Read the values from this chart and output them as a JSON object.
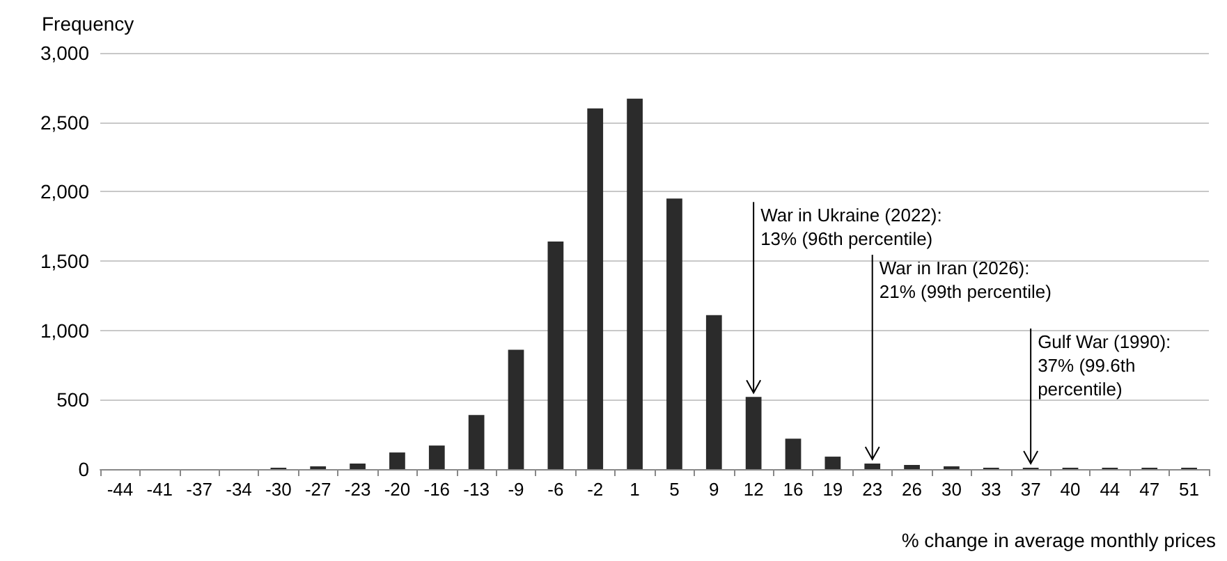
{
  "chart_data": {
    "type": "bar",
    "ylabel": "Frequency",
    "xlabel": "% change in average monthly prices",
    "categories": [
      "-44",
      "-41",
      "-37",
      "-34",
      "-30",
      "-27",
      "-23",
      "-20",
      "-16",
      "-13",
      "-9",
      "-6",
      "-2",
      "1",
      "5",
      "9",
      "12",
      "16",
      "19",
      "23",
      "26",
      "30",
      "33",
      "37",
      "40",
      "44",
      "47",
      "51"
    ],
    "values": [
      0,
      0,
      0,
      0,
      10,
      20,
      40,
      120,
      170,
      390,
      860,
      1640,
      2600,
      2670,
      1950,
      1110,
      520,
      220,
      90,
      40,
      30,
      20,
      10,
      10,
      10,
      10,
      10,
      10
    ],
    "color": "#2b2b2b",
    "ylim": [
      0,
      3000
    ],
    "yticks": [
      0,
      500,
      {
        "value": 1000,
        "label": "1,000"
      },
      {
        "value": 1500,
        "label": "1,500"
      },
      {
        "value": 2000,
        "label": "2,000"
      },
      {
        "value": 2500,
        "label": "2,500"
      },
      {
        "value": 3000,
        "label": "3,000"
      }
    ],
    "grid": "y",
    "annotations": [
      {
        "text": "War in Ukraine (2022):\n13% (96th percentile)",
        "x": "12",
        "y": 520
      },
      {
        "text": "War in Iran (2026):\n21% (99th percentile)",
        "x": "23",
        "y": 40
      },
      {
        "text": "Gulf War (1990):\n37% (99.6th\npercentile)",
        "x": "37",
        "y": 10
      }
    ]
  }
}
